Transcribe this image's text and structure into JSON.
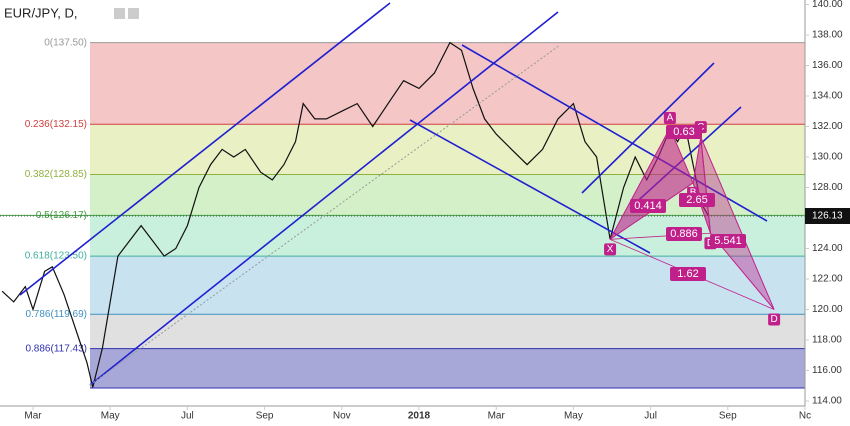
{
  "header": {
    "symbol": "EUR/JPY, D,"
  },
  "chart_data": {
    "type": "line",
    "series": [
      {
        "name": "EUR/JPY",
        "color": "#111111",
        "x": [
          -0.8,
          -0.5,
          -0.2,
          0,
          0.3,
          0.5,
          0.8,
          1.0,
          1.2,
          1.4,
          1.55,
          1.8,
          2.0,
          2.2,
          2.5,
          2.8,
          3.1,
          3.4,
          3.7,
          4.0,
          4.3,
          4.6,
          4.9,
          5.2,
          5.5,
          5.9,
          6.2,
          6.5,
          6.8,
          7.0,
          7.3,
          7.6,
          8.0,
          8.4,
          8.8,
          9.2,
          9.6,
          10.0,
          10.4,
          10.8,
          11.1,
          11.4,
          11.7,
          12.0,
          12.4,
          12.8,
          13.2,
          13.6,
          14.0,
          14.3,
          14.6,
          14.95,
          15.3,
          15.6,
          15.9,
          16.2,
          16.5,
          16.7,
          16.9,
          17.1,
          17.3,
          17.5
        ],
        "values": [
          121.2,
          120.5,
          121.5,
          120.0,
          122.5,
          122.8,
          121.0,
          119.5,
          118.0,
          116.5,
          114.9,
          117.5,
          120.5,
          123.5,
          124.5,
          125.5,
          124.5,
          123.5,
          124.0,
          125.5,
          128.0,
          129.5,
          130.5,
          130.0,
          130.5,
          129.0,
          128.5,
          129.5,
          131.0,
          133.5,
          132.5,
          132.5,
          133.0,
          133.5,
          132.0,
          133.5,
          135.0,
          134.5,
          135.5,
          137.5,
          137.0,
          134.5,
          132.5,
          131.5,
          130.5,
          129.5,
          130.5,
          132.5,
          133.5,
          131.0,
          130.0,
          124.6,
          128.0,
          130.0,
          128.5,
          130.0,
          131.8,
          131.0,
          132.0,
          129.5,
          127.0,
          126.13
        ]
      }
    ],
    "last_price": {
      "value": 126.13,
      "label": "126.13"
    },
    "fib": [
      {
        "label": "0(137.50)",
        "price": 137.5,
        "fill": "#f4c6c6",
        "line": "#999999"
      },
      {
        "label": "0.236(132.15)",
        "price": 132.15,
        "fill": "#e8f0c4",
        "line": "#d04040"
      },
      {
        "label": "0.382(128.85)",
        "price": 128.85,
        "fill": "#d4f0c8",
        "line": "#90b040"
      },
      {
        "label": "0.5(126.17)",
        "price": 126.17,
        "fill": "#c8f0dc",
        "line": "#40a040"
      },
      {
        "label": "0.618(123.50)",
        "price": 123.5,
        "fill": "#c8e2f0",
        "line": "#40b0a0"
      },
      {
        "label": "0.786(119.69)",
        "price": 119.69,
        "fill": "#e0e0e0",
        "line": "#4090c0"
      },
      {
        "label": "0.886(117.43)",
        "price": 117.43,
        "fill": "#a8a8d8",
        "line": "#3030b0"
      }
    ],
    "fib_low": 114.85,
    "pattern": {
      "color": "#c0208a",
      "points": [
        {
          "label": "X",
          "x": 14.95,
          "y": 124.6
        },
        {
          "label": "A",
          "x": 16.5,
          "y": 131.9
        },
        {
          "label": "B",
          "x": 17.1,
          "y": 128.3
        },
        {
          "label": "C",
          "x": 17.3,
          "y": 131.3
        },
        {
          "label": "D",
          "x": 17.55,
          "y": 125.0
        },
        {
          "label": "D",
          "x": 19.2,
          "y": 120.0
        }
      ],
      "ratios": [
        "0.414",
        "0.63",
        "2.65",
        "0.886",
        "5.541",
        "1.62"
      ]
    },
    "xlim": [
      -0.855,
      20.0
    ],
    "ylim": [
      113.67,
      140.295
    ],
    "xticks": [
      {
        "value": 0,
        "label": "Mar"
      },
      {
        "value": 2,
        "label": "May"
      },
      {
        "value": 4,
        "label": "Jul"
      },
      {
        "value": 6,
        "label": "Sep"
      },
      {
        "value": 8,
        "label": "Nov"
      },
      {
        "value": 10,
        "label": "2018"
      },
      {
        "value": 12,
        "label": "Mar"
      },
      {
        "value": 14,
        "label": "May"
      },
      {
        "value": 16,
        "label": "Jul"
      },
      {
        "value": 18,
        "label": "Sep"
      },
      {
        "value": 20,
        "label": "Nc"
      }
    ],
    "yticks": [
      {
        "value": 114,
        "label": "114.00"
      },
      {
        "value": 116,
        "label": "116.00"
      },
      {
        "value": 118,
        "label": "118.00"
      },
      {
        "value": 120,
        "label": "120.00"
      },
      {
        "value": 122,
        "label": "122.00"
      },
      {
        "value": 124,
        "label": "124.00"
      },
      {
        "value": 126,
        "label": "126.00"
      },
      {
        "value": 128,
        "label": "128.00"
      },
      {
        "value": 130,
        "label": "130.00"
      },
      {
        "value": 132,
        "label": "132.00"
      },
      {
        "value": 134,
        "label": "134.00"
      },
      {
        "value": 136,
        "label": "136.00"
      },
      {
        "value": 138,
        "label": "138.00"
      },
      {
        "value": 140,
        "label": "140.00"
      }
    ]
  }
}
